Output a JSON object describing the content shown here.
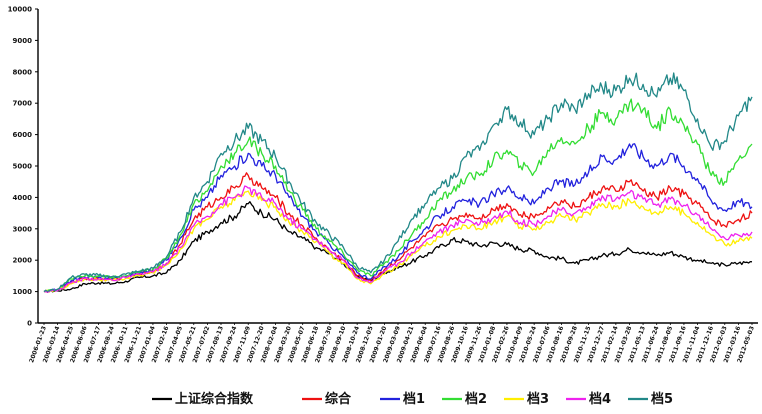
{
  "chart_data": {
    "type": "line",
    "title": "",
    "xlabel": "",
    "ylabel": "",
    "ylim": [
      0,
      10000
    ],
    "yticks": [
      0,
      1000,
      2000,
      3000,
      4000,
      5000,
      6000,
      7000,
      8000,
      9000,
      10000
    ],
    "grid": false,
    "legend_position": "bottom",
    "x": [
      "2006-01-23",
      "2006-03-14",
      "2006-04-25",
      "2006-06-06",
      "2006-07-17",
      "2006-08-24",
      "2006-10-11",
      "2006-11-21",
      "2007-01-04",
      "2007-02-16",
      "2007-04-05",
      "2007-05-21",
      "2007-07-02",
      "2007-08-13",
      "2007-09-24",
      "2007-11-09",
      "2007-12-20",
      "2008-02-04",
      "2008-03-20",
      "2008-05-07",
      "2008-06-18",
      "2008-07-30",
      "2008-09-10",
      "2008-10-24",
      "2008-12-05",
      "2009-01-20",
      "2009-03-09",
      "2009-04-21",
      "2009-06-04",
      "2009-07-16",
      "2009-08-26",
      "2009-10-16",
      "2009-11-26",
      "2010-01-08",
      "2010-02-26",
      "2010-04-09",
      "2010-05-24",
      "2010-07-06",
      "2010-08-16",
      "2010-09-28",
      "2010-11-15",
      "2010-12-27",
      "2011-02-14",
      "2011-03-28",
      "2011-05-13",
      "2011-06-24",
      "2011-08-05",
      "2011-09-16",
      "2011-11-04",
      "2011-12-16",
      "2012-02-03",
      "2012-03-16",
      "2012-05-03"
    ],
    "series": [
      {
        "name": "上证综合指数",
        "color": "#000000",
        "values": [
          1000,
          1030,
          1080,
          1250,
          1280,
          1250,
          1330,
          1450,
          1500,
          1600,
          2000,
          2600,
          2900,
          3200,
          3400,
          3800,
          3500,
          3300,
          2900,
          2700,
          2400,
          2200,
          1900,
          1500,
          1350,
          1600,
          1750,
          1950,
          2150,
          2400,
          2650,
          2600,
          2450,
          2550,
          2500,
          2350,
          2300,
          2100,
          2050,
          1900,
          2000,
          2150,
          2200,
          2350,
          2250,
          2150,
          2250,
          2100,
          2000,
          1900,
          1850,
          1900,
          1950
        ]
      },
      {
        "name": "综合",
        "color": "#ee1111",
        "values": [
          1000,
          1050,
          1300,
          1420,
          1400,
          1380,
          1450,
          1550,
          1650,
          1900,
          2500,
          3300,
          3700,
          4000,
          4300,
          4700,
          4300,
          4000,
          3500,
          3100,
          2700,
          2300,
          2000,
          1500,
          1350,
          1700,
          2000,
          2400,
          2750,
          3100,
          3300,
          3500,
          3350,
          3600,
          3800,
          3450,
          3350,
          3700,
          3900,
          3700,
          4000,
          4300,
          4200,
          4500,
          4200,
          4000,
          4300,
          4100,
          3800,
          3300,
          3100,
          3300,
          3500
        ]
      },
      {
        "name": "档1",
        "color": "#2222dd",
        "values": [
          1000,
          1060,
          1350,
          1470,
          1450,
          1420,
          1480,
          1600,
          1700,
          2000,
          2700,
          3600,
          4000,
          4700,
          5000,
          5400,
          5000,
          4700,
          4000,
          3400,
          2900,
          2500,
          2100,
          1600,
          1400,
          1800,
          2100,
          2600,
          3000,
          3400,
          3700,
          3900,
          3800,
          4100,
          4300,
          4000,
          3800,
          4300,
          4500,
          4400,
          4800,
          5300,
          5200,
          5700,
          5300,
          5000,
          5400,
          5000,
          4600,
          3900,
          3600,
          3900,
          3700
        ]
      },
      {
        "name": "档2",
        "color": "#33dd33",
        "values": [
          1000,
          1070,
          1400,
          1500,
          1480,
          1450,
          1500,
          1620,
          1720,
          2050,
          2800,
          3800,
          4200,
          5000,
          5400,
          5800,
          5400,
          5000,
          4200,
          3600,
          3000,
          2600,
          2200,
          1700,
          1500,
          1900,
          2300,
          2800,
          3300,
          3900,
          4200,
          4600,
          4700,
          5200,
          5500,
          5000,
          4800,
          5500,
          5900,
          5700,
          6200,
          6700,
          6500,
          7000,
          6800,
          6200,
          6800,
          6300,
          5700,
          4700,
          4500,
          5200,
          5700
        ]
      },
      {
        "name": "档3",
        "color": "#ffee00",
        "values": [
          1000,
          1040,
          1250,
          1400,
          1380,
          1350,
          1420,
          1520,
          1600,
          1850,
          2350,
          3000,
          3300,
          3700,
          3900,
          4200,
          3900,
          3700,
          3200,
          2900,
          2600,
          2200,
          1900,
          1400,
          1250,
          1550,
          1800,
          2150,
          2450,
          2750,
          2950,
          3100,
          3000,
          3200,
          3400,
          3050,
          3000,
          3200,
          3400,
          3300,
          3500,
          3800,
          3700,
          3900,
          3700,
          3500,
          3700,
          3500,
          3200,
          2800,
          2500,
          2600,
          2700
        ]
      },
      {
        "name": "档4",
        "color": "#ee22ee",
        "values": [
          1000,
          1040,
          1280,
          1420,
          1400,
          1370,
          1440,
          1540,
          1620,
          1880,
          2400,
          3100,
          3400,
          3800,
          4000,
          4300,
          4000,
          3800,
          3300,
          3000,
          2650,
          2300,
          2000,
          1450,
          1300,
          1650,
          1900,
          2250,
          2600,
          2900,
          3100,
          3300,
          3150,
          3350,
          3550,
          3200,
          3150,
          3400,
          3600,
          3500,
          3700,
          4050,
          3950,
          4150,
          3950,
          3750,
          3950,
          3750,
          3450,
          3000,
          2700,
          2800,
          2900
        ]
      },
      {
        "name": "档5",
        "color": "#228888",
        "values": [
          1000,
          1080,
          1450,
          1550,
          1520,
          1480,
          1550,
          1650,
          1750,
          2100,
          2900,
          4000,
          4500,
          5400,
          5800,
          6200,
          5800,
          5300,
          4500,
          3800,
          3200,
          2800,
          2400,
          1800,
          1600,
          2000,
          2600,
          3300,
          3800,
          4300,
          4600,
          5300,
          5500,
          6300,
          6800,
          6400,
          6000,
          6500,
          7000,
          6800,
          7300,
          7500,
          7400,
          7800,
          7600,
          7200,
          7800,
          7400,
          6500,
          5600,
          5800,
          6600,
          7200
        ]
      }
    ]
  }
}
